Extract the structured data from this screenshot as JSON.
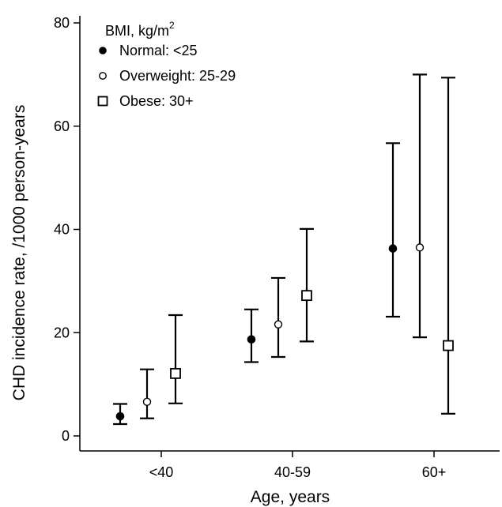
{
  "chart_data": {
    "type": "scatter",
    "subtype": "point-with-error-bars",
    "xlabel": "Age, years",
    "ylabel": "CHD incidence rate, /1000 person-years",
    "categories": [
      "<40",
      "40-59",
      "60+"
    ],
    "ylim": [
      0,
      80
    ],
    "yticks": [
      0,
      20,
      40,
      60,
      80
    ],
    "grid": false,
    "legend": {
      "title": "BMI, kg/m",
      "title_superscript": "2",
      "placement": "top-left"
    },
    "series": [
      {
        "name": "Normal: <25",
        "marker": "filled-circle",
        "values": [
          3.8,
          18.7,
          36.3
        ],
        "lower": [
          2.3,
          14.3,
          23.1
        ],
        "upper": [
          6.2,
          24.5,
          56.7
        ]
      },
      {
        "name": "Overweight: 25-29",
        "marker": "hollow-circle",
        "values": [
          6.6,
          21.6,
          36.5
        ],
        "lower": [
          3.4,
          15.3,
          19.1
        ],
        "upper": [
          12.9,
          30.6,
          70.0
        ]
      },
      {
        "name": "Obese: 30+",
        "marker": "hollow-square",
        "values": [
          12.1,
          27.2,
          17.5
        ],
        "lower": [
          6.3,
          18.3,
          4.3
        ],
        "upper": [
          23.4,
          40.1,
          69.4
        ]
      }
    ]
  }
}
